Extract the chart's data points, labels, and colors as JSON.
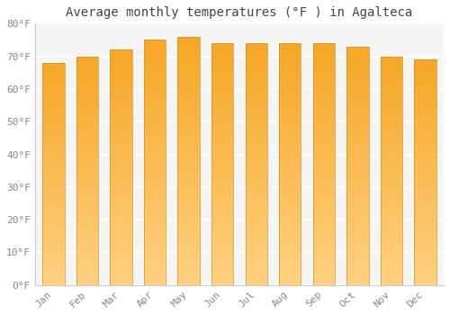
{
  "title": "Average monthly temperatures (°F ) in Agalteca",
  "months": [
    "Jan",
    "Feb",
    "Mar",
    "Apr",
    "May",
    "Jun",
    "Jul",
    "Aug",
    "Sep",
    "Oct",
    "Nov",
    "Dec"
  ],
  "values": [
    68,
    70,
    72,
    75,
    76,
    74,
    74,
    74,
    74,
    73,
    70,
    69
  ],
  "ylim": [
    0,
    80
  ],
  "yticks": [
    0,
    10,
    20,
    30,
    40,
    50,
    60,
    70,
    80
  ],
  "ytick_labels": [
    "0°F",
    "10°F",
    "20°F",
    "30°F",
    "40°F",
    "50°F",
    "60°F",
    "70°F",
    "80°F"
  ],
  "background_color": "#ffffff",
  "plot_bg_color": "#f5f5f5",
  "grid_color": "#ffffff",
  "title_fontsize": 10,
  "tick_fontsize": 8,
  "tick_color": "#888888",
  "bar_color_main": "#F5A623",
  "bar_color_light": "#FFD080",
  "bar_edge_color": "#E09010",
  "bar_width": 0.65
}
